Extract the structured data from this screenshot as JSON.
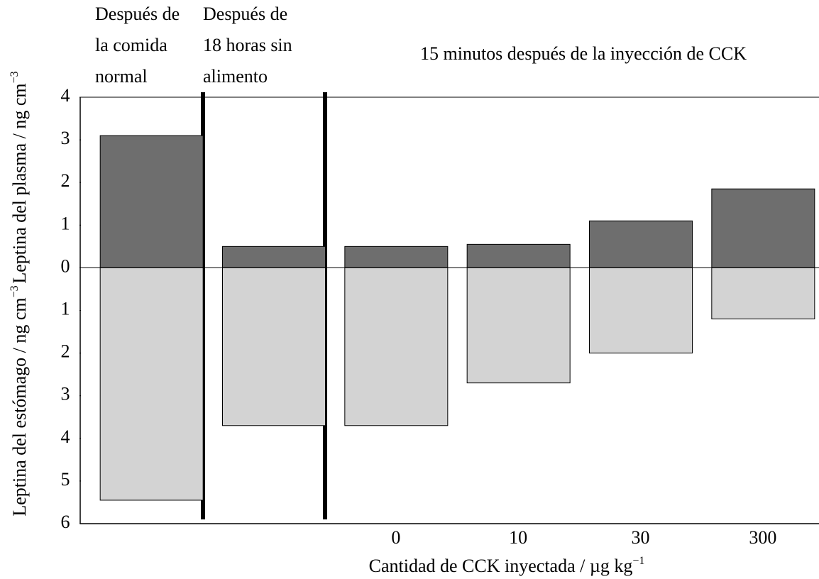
{
  "chart_data": {
    "type": "bar",
    "group_labels": [
      [
        "Después de",
        "la comida",
        "normal"
      ],
      [
        "Después de",
        "18 horas sin",
        "alimento"
      ]
    ],
    "annotation": "15 minutos después de la  inyección de CCK",
    "ylabel_top": {
      "text": "Leptina del plasma / ng cm",
      "sup": "−3"
    },
    "ylabel_bottom": {
      "text": "Leptina del estómago / ng cm",
      "sup": "−3"
    },
    "xlabel": {
      "text": "Cantidad de CCK inyectada / µg kg",
      "sup": "−1"
    },
    "categories": [
      null,
      null,
      "0",
      "10",
      "30",
      "300"
    ],
    "series": [
      {
        "name": "Leptina del plasma",
        "color": "#6e6e6e",
        "values": [
          3.1,
          0.5,
          0.5,
          0.55,
          1.1,
          1.85
        ]
      },
      {
        "name": "Leptina del estómago",
        "color": "#d3d3d3",
        "values": [
          -5.45,
          -3.7,
          -3.7,
          -2.7,
          -2.0,
          -1.2
        ]
      }
    ],
    "ylim": [
      -6,
      4
    ],
    "yticks": [
      {
        "value": -6,
        "label": "6"
      },
      {
        "value": -5,
        "label": "5"
      },
      {
        "value": -4,
        "label": "4"
      },
      {
        "value": -3,
        "label": "3"
      },
      {
        "value": -2,
        "label": "2"
      },
      {
        "value": -1,
        "label": "1"
      },
      0,
      1,
      2,
      3,
      4
    ]
  }
}
